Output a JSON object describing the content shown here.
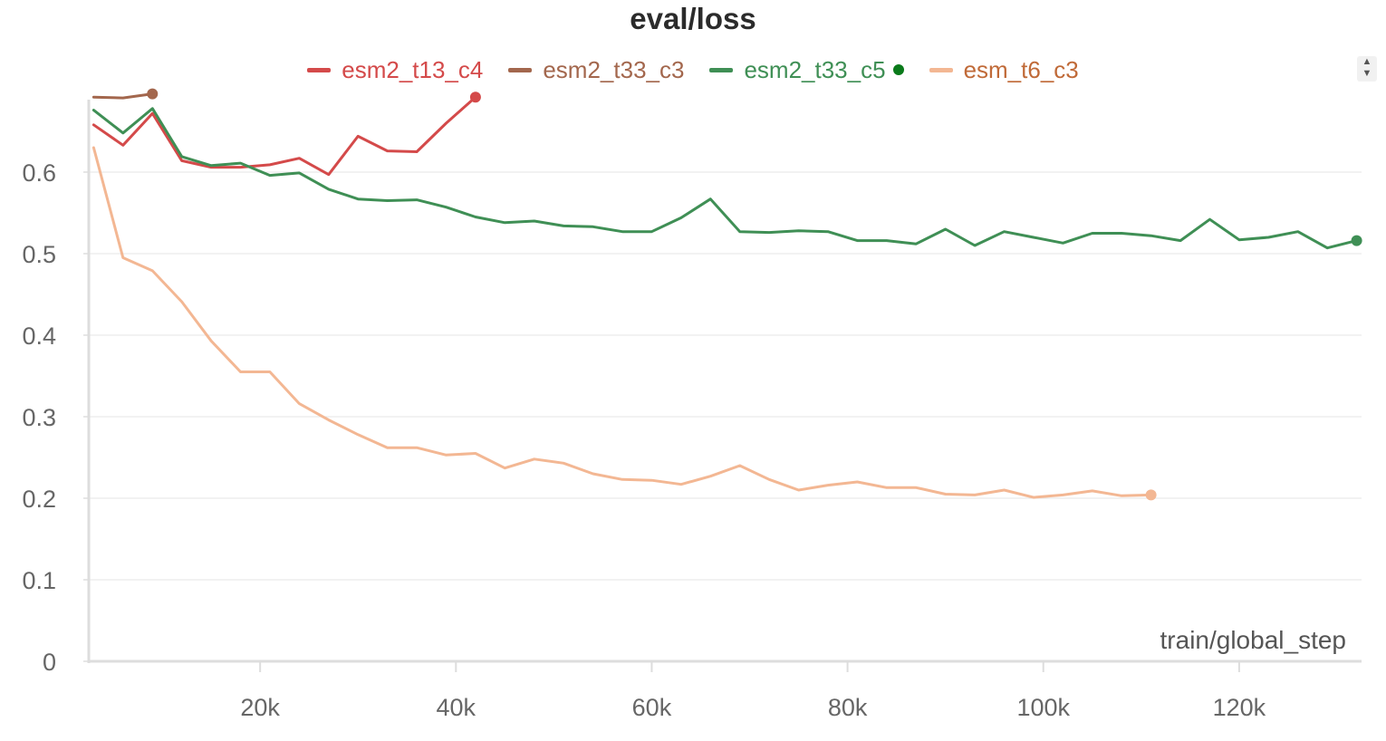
{
  "chart_data": {
    "type": "line",
    "title": "eval/loss",
    "xlabel": "train/global_step",
    "ylabel": "",
    "xlim": [
      2500,
      132500
    ],
    "ylim": [
      0,
      0.7
    ],
    "x_ticks": [
      20000,
      40000,
      60000,
      80000,
      100000,
      120000
    ],
    "x_tick_labels": [
      "20k",
      "40k",
      "60k",
      "80k",
      "100k",
      "120k"
    ],
    "y_ticks": [
      0,
      0.1,
      0.2,
      0.3,
      0.4,
      0.5,
      0.6
    ],
    "y_tick_labels": [
      "0",
      "0.1",
      "0.2",
      "0.3",
      "0.4",
      "0.5",
      "0.6"
    ],
    "grid": true,
    "legend_position": "top-center",
    "series": [
      {
        "name": "esm2_t13_c4",
        "color": "#d44a4a",
        "x": [
          3000,
          6000,
          9000,
          12000,
          15000,
          18000,
          21000,
          24000,
          27000,
          30000,
          33000,
          36000,
          39000,
          42000
        ],
        "y": [
          0.658,
          0.633,
          0.672,
          0.614,
          0.606,
          0.606,
          0.609,
          0.617,
          0.597,
          0.644,
          0.626,
          0.625,
          0.66,
          0.692
        ]
      },
      {
        "name": "esm2_t33_c3",
        "color": "#a3674d",
        "x": [
          3000,
          6000,
          9000
        ],
        "y": [
          0.692,
          0.691,
          0.696
        ]
      },
      {
        "name": "esm2_t33_c5",
        "color": "#3f8f55",
        "legend_marker_color": "#0a7a1a",
        "x": [
          3000,
          6000,
          9000,
          12000,
          15000,
          18000,
          21000,
          24000,
          27000,
          30000,
          33000,
          36000,
          39000,
          42000,
          45000,
          48000,
          51000,
          54000,
          57000,
          60000,
          63000,
          66000,
          69000,
          72000,
          75000,
          78000,
          81000,
          84000,
          87000,
          90000,
          93000,
          96000,
          99000,
          102000,
          105000,
          108000,
          111000,
          114000,
          117000,
          120000,
          123000,
          126000,
          129000,
          132000
        ],
        "y": [
          0.676,
          0.648,
          0.678,
          0.619,
          0.608,
          0.611,
          0.596,
          0.599,
          0.579,
          0.567,
          0.565,
          0.566,
          0.557,
          0.545,
          0.538,
          0.54,
          0.534,
          0.533,
          0.527,
          0.527,
          0.544,
          0.567,
          0.527,
          0.526,
          0.528,
          0.527,
          0.516,
          0.516,
          0.512,
          0.53,
          0.51,
          0.527,
          0.52,
          0.513,
          0.525,
          0.525,
          0.522,
          0.516,
          0.542,
          0.517,
          0.52,
          0.527,
          0.507,
          0.516
        ]
      },
      {
        "name": "esm_t6_c3",
        "color": "#f3b793",
        "x": [
          3000,
          6000,
          9000,
          12000,
          15000,
          18000,
          21000,
          24000,
          27000,
          30000,
          33000,
          36000,
          39000,
          42000,
          45000,
          48000,
          51000,
          54000,
          57000,
          60000,
          63000,
          66000,
          69000,
          72000,
          75000,
          78000,
          81000,
          84000,
          87000,
          90000,
          93000,
          96000,
          99000,
          102000,
          105000,
          108000,
          111000
        ],
        "y": [
          0.63,
          0.495,
          0.479,
          0.441,
          0.393,
          0.355,
          0.355,
          0.316,
          0.296,
          0.278,
          0.262,
          0.262,
          0.253,
          0.255,
          0.237,
          0.248,
          0.243,
          0.23,
          0.223,
          0.222,
          0.217,
          0.227,
          0.24,
          0.223,
          0.21,
          0.216,
          0.22,
          0.213,
          0.213,
          0.205,
          0.204,
          0.21,
          0.201,
          0.204,
          0.209,
          0.203,
          0.204
        ]
      }
    ]
  }
}
